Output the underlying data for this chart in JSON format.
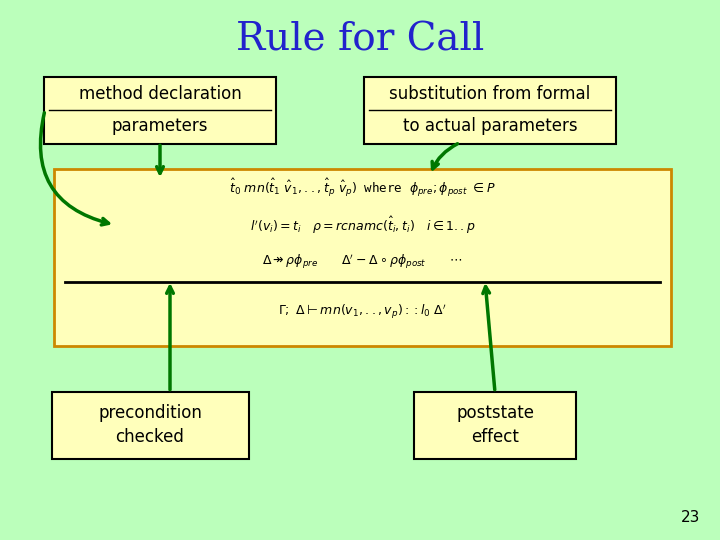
{
  "title": "Rule for Call",
  "title_color": "#2222cc",
  "title_fontsize": 28,
  "bg_color": "#bbffbb",
  "box_bg_color": "#ffffbb",
  "box_edge_color": "#cc8800",
  "label_bg_color": "#ffffbb",
  "label_edge_color": "#000000",
  "arrow_color": "#007700",
  "text_color": "#000000",
  "slide_number": "23",
  "label_method_line1": "method declaration",
  "label_method_line2": "parameters",
  "label_substitution_line1": "substitution from formal",
  "label_substitution_line2": "to actual parameters",
  "label_precondition_line1": "precondition",
  "label_precondition_line2": "checked",
  "label_poststate_line1": "poststate",
  "label_poststate_line2": "effect",
  "formula_line1": "$\\hat{t}_0\\ mn(\\hat{t}_1\\ \\hat{v}_1,..,\\hat{t}_p\\ \\hat{v}_p)$ where $\\phi_{pre};\\phi_{post}\\ \\in P$",
  "formula_line2": "$l'(v_i)=t_i \\quad \\rho=rcnamc(\\hat{t}_i,t_i) \\quad i\\in 1..p$",
  "formula_line3": "$\\Delta \\twoheadrightarrow \\rho\\phi_{pre} \\qquad \\Delta'-\\Delta\\circ\\rho\\phi_{post} \\qquad \\cdots$",
  "formula_line4": "$\\Gamma;\\ \\Delta\\vdash mn(v_1,..,v_p)::l_0\\ \\Delta'$"
}
